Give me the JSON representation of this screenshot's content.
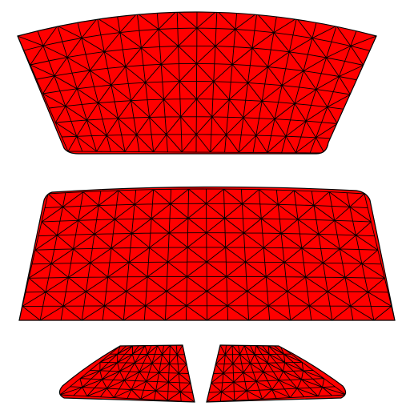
{
  "colors": {
    "background": "#ffffff",
    "panel_fill": "#ff0000",
    "mesh_line": "#000000"
  },
  "panels": [
    {
      "name": "top-window-panel",
      "mesh": "triangulated-grid"
    },
    {
      "name": "middle-window-panel",
      "mesh": "triangulated-grid"
    },
    {
      "name": "bottom-left-window-panel",
      "mesh": "triangulated-grid"
    },
    {
      "name": "bottom-right-window-panel",
      "mesh": "triangulated-grid"
    }
  ]
}
